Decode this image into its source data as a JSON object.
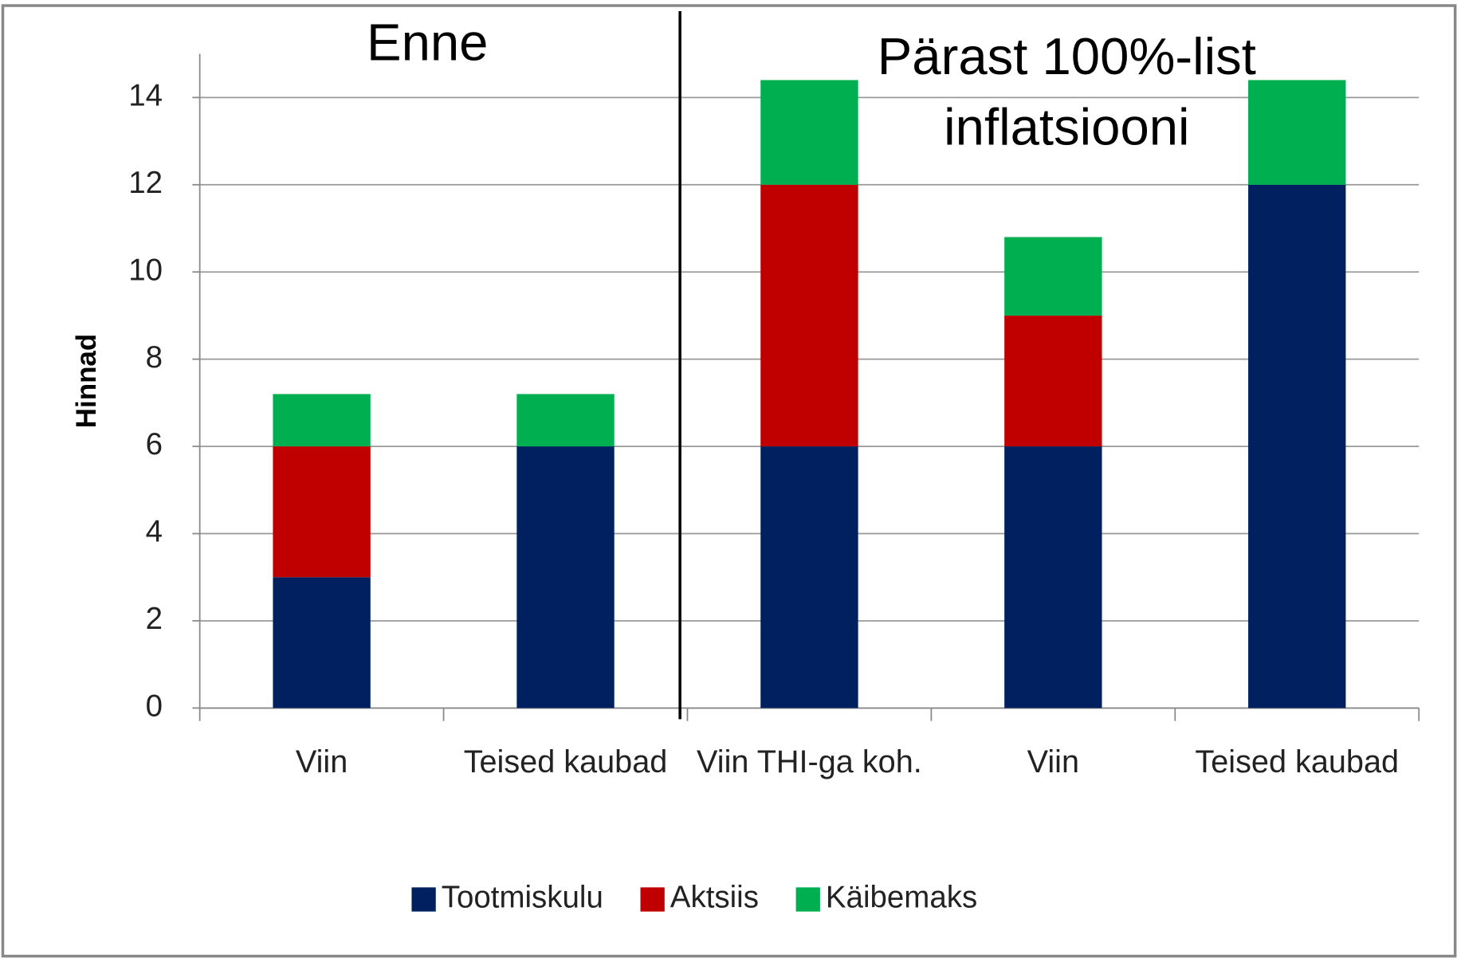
{
  "chart_data": {
    "type": "stacked_bar",
    "y_label": "Hinnad",
    "categories": [
      "Viin",
      "Teised kaubad",
      "Viin THI-ga koh.",
      "Viin",
      "Teised kaubad"
    ],
    "series": [
      {
        "name": "Tootmiskulu",
        "color": "#002060",
        "values": [
          3,
          6,
          6,
          6,
          12
        ]
      },
      {
        "name": "Aktsiis",
        "color": "#c00000",
        "values": [
          3,
          0,
          6,
          3,
          0
        ]
      },
      {
        "name": "Käibemaks",
        "color": "#00b050",
        "values": [
          1.2,
          1.2,
          2.4,
          1.8,
          2.4
        ]
      }
    ],
    "ylim": [
      0,
      15
    ],
    "yticks": [
      0,
      2,
      4,
      6,
      8,
      10,
      12,
      14
    ],
    "grid": true,
    "legend": "bottom",
    "annotations": [
      {
        "lines": [
          "Enne"
        ]
      },
      {
        "lines": [
          "Pärast 100%-list",
          "inflatsiooni"
        ]
      }
    ]
  }
}
